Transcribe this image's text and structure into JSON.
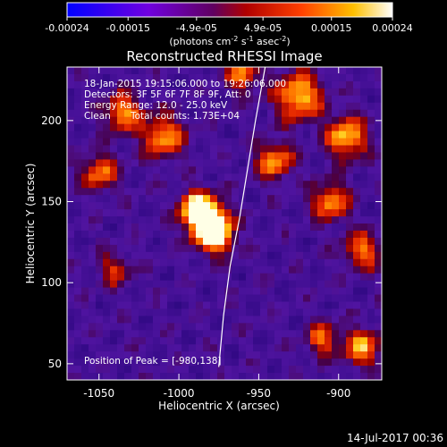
{
  "colorbar": {
    "ticks": [
      "-0.00024",
      "-0.00015",
      "-4.9e-05",
      "4.9e-05",
      "0.00015",
      "0.00024"
    ],
    "tick_values": [
      -0.00024,
      -0.00015,
      -4.9e-05,
      4.9e-05,
      0.00015,
      0.00024
    ],
    "range": [
      -0.00024,
      0.00024
    ],
    "units_label": "(photons cm",
    "units_exp1": "-2",
    "units_mid": " s",
    "units_exp2": "-1",
    "units_end": " asec",
    "units_exp3": "-2",
    "units_close": ")"
  },
  "info": {
    "line1": "18-Jan-2015 19:15:06.000 to 19:26:06.000",
    "line2": "Detectors: 3F 5F 6F 7F 8F 9F, Att: 0",
    "line3": "Energy Range: 12.0 - 25.0 keV",
    "line4_method": "Clean",
    "line4_counts": "Total counts: 1.73E+04",
    "peak": "Position of Peak = [-980,138]"
  },
  "timestamp": "14-Jul-2017 00:36",
  "chart_data": {
    "type": "heatmap",
    "title": "Reconstructed RHESSI Image",
    "xlabel": "Heliocentric X (arcsec)",
    "ylabel": "Heliocentric Y (arcsec)",
    "xlim": [
      -1070,
      -873
    ],
    "ylim": [
      40,
      233
    ],
    "x_ticks": [
      -1050,
      -1000,
      -950,
      -900
    ],
    "y_ticks": [
      50,
      100,
      150,
      200
    ],
    "x_tick_labels": [
      "-1050",
      "-1000",
      "-950",
      "-900"
    ],
    "y_tick_labels": [
      "50",
      "100",
      "150",
      "200"
    ],
    "colormap": "rainbow-like (blue-purple-red-orange-yellow-white)",
    "peak_position": [
      -980,
      138
    ],
    "limb": [
      [
        -975,
        48
      ],
      [
        -972,
        80
      ],
      [
        -968,
        110
      ],
      [
        -962,
        140
      ],
      [
        -957,
        170
      ],
      [
        -952,
        200
      ],
      [
        -946,
        233
      ]
    ],
    "limb_color": "#ffffff",
    "sources": [
      {
        "x": -982,
        "y": 138,
        "sigma": 9,
        "amp": 1.0
      },
      {
        "x": -990,
        "y": 147,
        "sigma": 7,
        "amp": 0.55
      },
      {
        "x": -975,
        "y": 127,
        "sigma": 7,
        "amp": 0.5
      },
      {
        "x": -1010,
        "y": 190,
        "sigma": 9,
        "amp": 0.55
      },
      {
        "x": -1035,
        "y": 205,
        "sigma": 8,
        "amp": 0.55
      },
      {
        "x": -1050,
        "y": 168,
        "sigma": 8,
        "amp": 0.5
      },
      {
        "x": -925,
        "y": 215,
        "sigma": 10,
        "amp": 0.65
      },
      {
        "x": -895,
        "y": 190,
        "sigma": 9,
        "amp": 0.62
      },
      {
        "x": -905,
        "y": 150,
        "sigma": 8,
        "amp": 0.55
      },
      {
        "x": -940,
        "y": 175,
        "sigma": 8,
        "amp": 0.55
      },
      {
        "x": -885,
        "y": 120,
        "sigma": 8,
        "amp": 0.5
      },
      {
        "x": -885,
        "y": 60,
        "sigma": 8,
        "amp": 0.55
      },
      {
        "x": -910,
        "y": 65,
        "sigma": 7,
        "amp": 0.45
      },
      {
        "x": -1040,
        "y": 108,
        "sigma": 7,
        "amp": 0.35
      },
      {
        "x": -960,
        "y": 228,
        "sigma": 7,
        "amp": 0.5
      }
    ]
  }
}
